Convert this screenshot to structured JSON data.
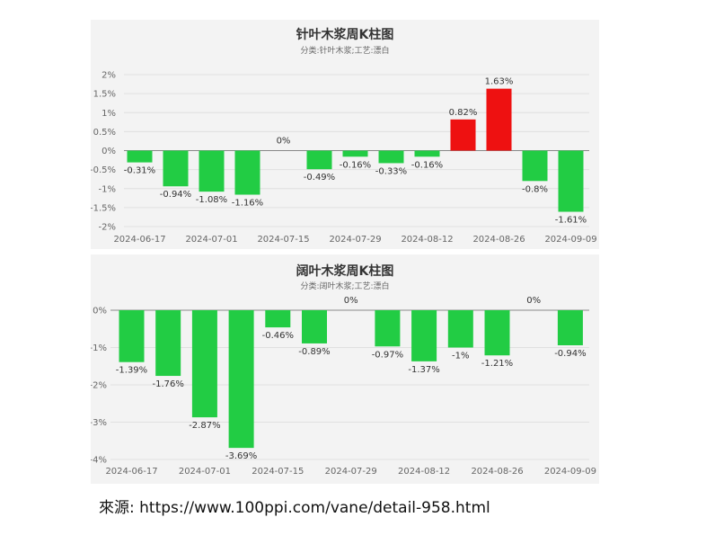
{
  "colors": {
    "positive": "#ee1111",
    "negative": "#22cc44",
    "grid": "#e0e0e0",
    "axis": "#888888"
  },
  "source": {
    "label": "來源: https://www.100ppi.com/vane/detail-958.html"
  },
  "chart_data": [
    {
      "type": "bar",
      "title": "针叶木浆周K柱图",
      "subtitle": "分类:针叶木浆;工艺:漂白",
      "ylim": [
        -2,
        2
      ],
      "yticks": [
        2,
        1.5,
        1,
        0.5,
        0,
        -0.5,
        -1,
        -1.5,
        -2
      ],
      "ytick_labels": [
        "2%",
        "1.5%",
        "1%",
        "0.5%",
        "0%",
        "-0.5%",
        "-1%",
        "-1.5%",
        "-2%"
      ],
      "x_tick_labels": [
        "2024-06-17",
        "2024-07-01",
        "2024-07-15",
        "2024-07-29",
        "2024-08-12",
        "2024-08-26",
        "2024-09-09"
      ],
      "grid": true,
      "values": [
        -0.31,
        -0.94,
        -1.08,
        -1.16,
        0,
        -0.49,
        -0.16,
        -0.33,
        -0.16,
        0.82,
        1.63,
        -0.8,
        -1.61
      ],
      "value_labels": [
        "-0.31%",
        "-0.94%",
        "-1.08%",
        "-1.16%",
        "0%",
        "-0.49%",
        "-0.16%",
        "-0.33%",
        "-0.16%",
        "0.82%",
        "1.63%",
        "-0.8%",
        "-1.61%"
      ]
    },
    {
      "type": "bar",
      "title": "阔叶木浆周K柱图",
      "subtitle": "分类:阔叶木浆;工艺:漂白",
      "ylim": [
        -4,
        0
      ],
      "yticks": [
        0,
        -1,
        -2,
        -3,
        -4
      ],
      "ytick_labels": [
        "0%",
        "-1%",
        "-2%",
        "-3%",
        "-4%"
      ],
      "x_tick_labels": [
        "2024-06-17",
        "2024-07-01",
        "2024-07-15",
        "2024-07-29",
        "2024-08-12",
        "2024-08-26",
        "2024-09-09"
      ],
      "grid": true,
      "values": [
        -1.39,
        -1.76,
        -2.87,
        -3.69,
        -0.46,
        -0.89,
        0,
        -0.97,
        -1.37,
        -1,
        -1.21,
        0,
        -0.94
      ],
      "value_labels": [
        "-1.39%",
        "-1.76%",
        "-2.87%",
        "-3.69%",
        "-0.46%",
        "-0.89%",
        "0%",
        "-0.97%",
        "-1.37%",
        "-1%",
        "-1.21%",
        "0%",
        "-0.94%"
      ]
    }
  ]
}
